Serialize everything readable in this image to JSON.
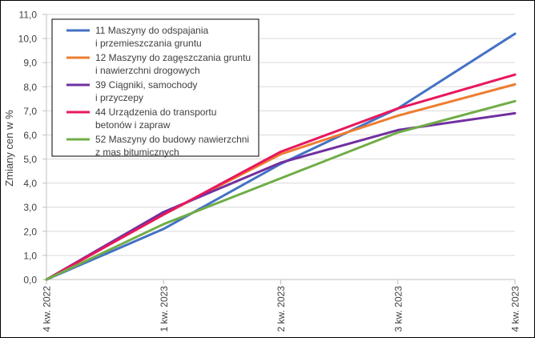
{
  "chart_data": {
    "type": "line",
    "title": "",
    "xlabel": "",
    "ylabel": "Zmiany cen w %",
    "categories": [
      "4 kw. 2022",
      "1 kw. 2023",
      "2 kw. 2023",
      "3 kw. 2023",
      "4 kw. 2023"
    ],
    "ylim": [
      0,
      11
    ],
    "yticks": [
      "0,0",
      "1,0",
      "2,0",
      "3,0",
      "4,0",
      "5,0",
      "6,0",
      "7,0",
      "8,0",
      "9,0",
      "10,0",
      "11,0"
    ],
    "grid": true,
    "legend_position": "top-left",
    "series": [
      {
        "name": "11 Maszyny do odspajania i przemieszczania gruntu",
        "legend_lines": [
          "11 Maszyny do odspajania",
          "i przemieszczania gruntu"
        ],
        "color": "#4472C4",
        "values": [
          0.0,
          2.1,
          4.8,
          7.1,
          10.2
        ]
      },
      {
        "name": "12 Maszyny do zagęszczania gruntu i nawierzchni drogowych",
        "legend_lines": [
          "12 Maszyny do zagęszczania gruntu",
          "i nawierzchni drogowych"
        ],
        "color": "#ED7D31",
        "values": [
          0.0,
          2.7,
          5.2,
          6.8,
          8.1
        ]
      },
      {
        "name": "39 Ciągniki, samochody i przyczepy",
        "legend_lines": [
          "39 Ciągniki, samochody",
          "i przyczepy"
        ],
        "color": "#7030A0",
        "values": [
          0.0,
          2.8,
          4.85,
          6.2,
          6.9
        ]
      },
      {
        "name": "44 Urządzenia do transportu betonów i zapraw",
        "legend_lines": [
          "44 Urządzenia do transportu",
          "betonów i zapraw"
        ],
        "color": "#E8175D",
        "values": [
          0.0,
          2.7,
          5.3,
          7.1,
          8.5
        ]
      },
      {
        "name": "52 Maszyny do budowy nawierzchni z mas bitumicznych",
        "legend_lines": [
          "52 Maszyny do budowy nawierzchni",
          "z mas bitumicznych"
        ],
        "color": "#70AD47",
        "values": [
          0.0,
          2.3,
          4.2,
          6.1,
          7.4
        ]
      }
    ]
  }
}
